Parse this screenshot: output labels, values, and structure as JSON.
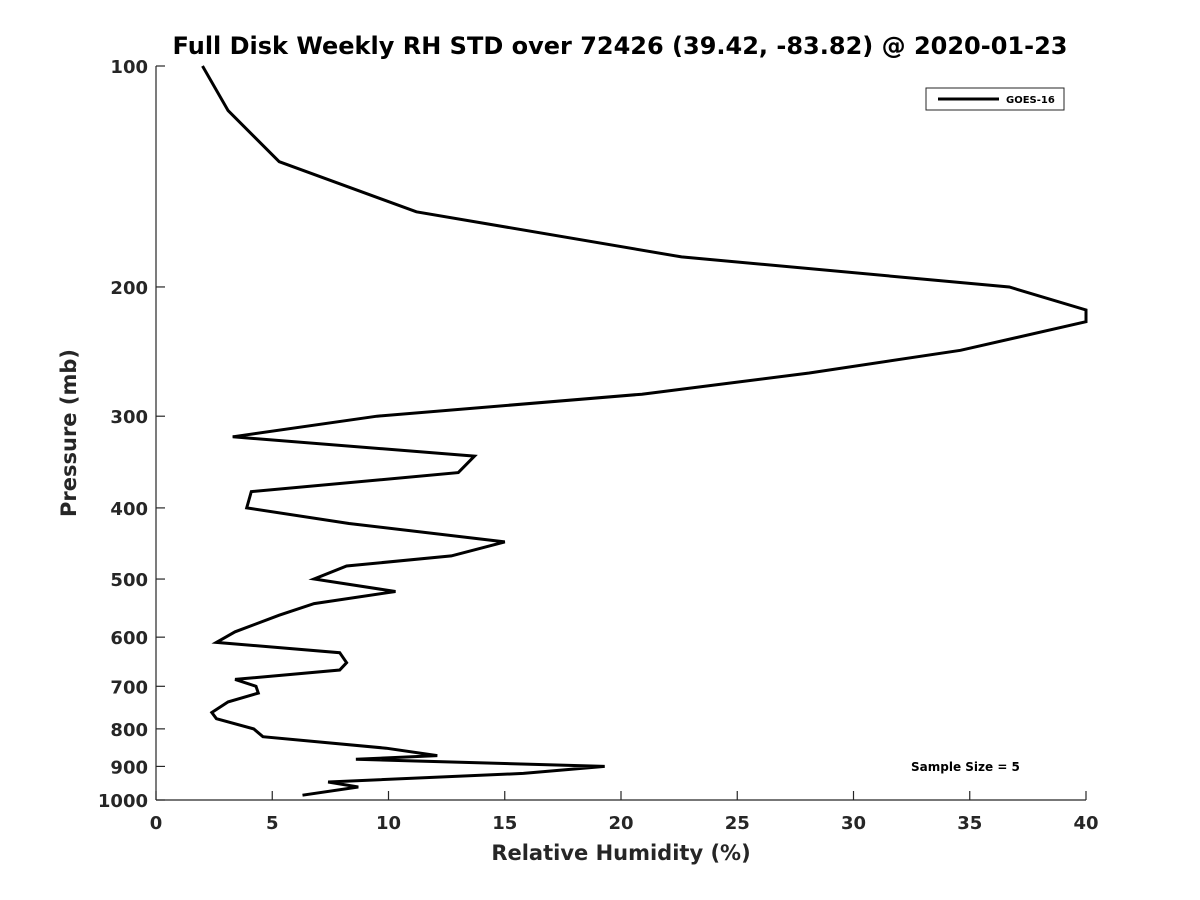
{
  "chart_data": {
    "type": "line",
    "title": "Full Disk Weekly RH STD over 72426 (39.42, -83.82) @ 2020-01-23",
    "xlabel": "Relative Humidity (%)",
    "ylabel": "Pressure (mb)",
    "xlim": [
      0,
      40
    ],
    "ylim": [
      100,
      1000
    ],
    "yscale": "log",
    "y_reversed": true,
    "grid": false,
    "legend_position": "top-right",
    "x_ticks": [
      0,
      5,
      10,
      15,
      20,
      25,
      30,
      35,
      40
    ],
    "x_tick_labels": [
      "0",
      "5",
      "10",
      "15",
      "20",
      "25",
      "30",
      "35",
      "40"
    ],
    "y_ticks": [
      100,
      200,
      300,
      400,
      500,
      600,
      700,
      800,
      900,
      1000
    ],
    "y_tick_labels": [
      "100",
      "200",
      "300",
      "400",
      "500",
      "600",
      "700",
      "800",
      "900",
      "1000"
    ],
    "series": [
      {
        "name": "GOES-16",
        "color": "#000000",
        "points": [
          [
            2.0,
            100
          ],
          [
            3.1,
            115
          ],
          [
            5.3,
            135
          ],
          [
            11.2,
            158
          ],
          [
            22.6,
            182
          ],
          [
            36.7,
            200
          ],
          [
            40.0,
            215
          ],
          [
            40.0,
            223
          ],
          [
            34.6,
            244
          ],
          [
            28.1,
            262
          ],
          [
            20.9,
            280
          ],
          [
            9.5,
            300
          ],
          [
            3.3,
            320
          ],
          [
            13.7,
            340
          ],
          [
            13.0,
            358
          ],
          [
            4.1,
            380
          ],
          [
            3.9,
            400
          ],
          [
            8.3,
            420
          ],
          [
            15.0,
            445
          ],
          [
            12.7,
            465
          ],
          [
            8.2,
            480
          ],
          [
            6.8,
            500
          ],
          [
            10.3,
            520
          ],
          [
            6.8,
            540
          ],
          [
            5.3,
            560
          ],
          [
            3.4,
            590
          ],
          [
            2.6,
            610
          ],
          [
            7.9,
            630
          ],
          [
            8.2,
            650
          ],
          [
            7.9,
            665
          ],
          [
            3.4,
            685
          ],
          [
            4.3,
            700
          ],
          [
            4.4,
            715
          ],
          [
            3.1,
            735
          ],
          [
            2.4,
            760
          ],
          [
            2.6,
            775
          ],
          [
            4.2,
            800
          ],
          [
            4.6,
            820
          ],
          [
            9.9,
            850
          ],
          [
            12.1,
            870
          ],
          [
            8.6,
            880
          ],
          [
            19.3,
            900
          ],
          [
            15.8,
            920
          ],
          [
            7.4,
            945
          ],
          [
            8.7,
            960
          ],
          [
            6.3,
            985
          ]
        ]
      }
    ],
    "annotation": "Sample Size = 5"
  }
}
